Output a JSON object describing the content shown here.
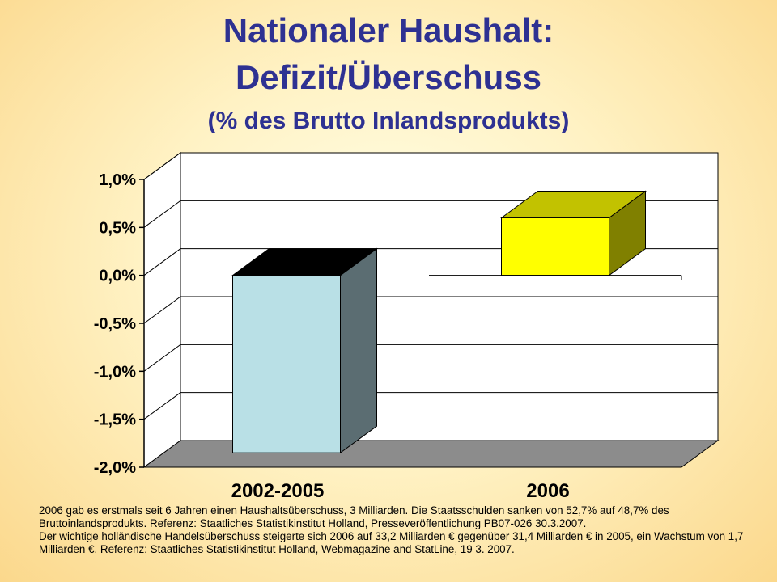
{
  "title": {
    "line1": "Nationaler Haushalt:",
    "line2": "Defizit/Überschuss",
    "line3": "(% des Brutto Inlandsprodukts)"
  },
  "chart_data": {
    "type": "bar",
    "style": "3d",
    "categories": [
      "2002-2005",
      "2006"
    ],
    "values": [
      -1.85,
      0.6
    ],
    "ylim": [
      -2.0,
      1.0
    ],
    "yticks": [
      1.0,
      0.5,
      0.0,
      -0.5,
      -1.0,
      -1.5,
      -2.0
    ],
    "ytick_labels": [
      "1,0%",
      "0,5%",
      "0,0%",
      "-0,5%",
      "-1,0%",
      "-1,5%",
      "-2,0%"
    ],
    "grid": true,
    "legend": "none",
    "colors": {
      "bar_negative_front": "#b9e0e6",
      "bar_negative_side": "#5b6d72",
      "bar_negative_top": "#000000",
      "bar_positive_front": "#ffff00",
      "bar_positive_side": "#808000",
      "bar_positive_top": "#c2c200",
      "floor": "#8c8c8c",
      "plot_wall": "#ffffff"
    }
  },
  "notes": {
    "paragraph1": "2006 gab es erstmals seit 6 Jahren einen Haushaltsüberschuss, 3 Milliarden. Die Staatsschulden sanken von 52,7% auf 48,7% des Bruttoinlandsprodukts. Referenz: Staatliches Statistikinstitut Holland, Presseveröffentlichung PB07-026 30.3.2007.",
    "paragraph2": "Der wichtige holländische Handelsüberschuss steigerte sich 2006 auf 33,2 Milliarden € gegenüber 31,4 Milliarden € in 2005, ein Wachstum von 1,7 Milliarden €. Referenz: Staatliches Statistikinstitut Holland, Webmagazine and StatLine, 19 3. 2007."
  }
}
